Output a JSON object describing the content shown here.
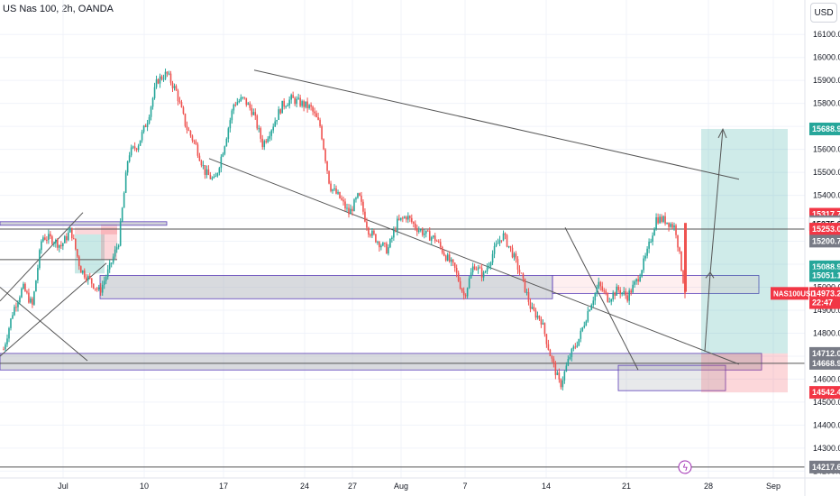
{
  "header": {
    "title": "US Nas 100, 2h, OANDA",
    "currency_button": "USD"
  },
  "colors": {
    "up": "#26a69a",
    "down": "#ef5350",
    "line": "#555555",
    "rect_gray": "#9598a1",
    "rect_fill": "#b2b5be",
    "profit": "#26a69a",
    "loss": "#f23645"
  },
  "icons": {
    "event_marker": "lightning-icon"
  },
  "chart_data": {
    "type": "candlestick",
    "symbol": "US Nas 100",
    "timeframe": "2h",
    "source": "OANDA",
    "x_tick_labels": [
      "Jul",
      "10",
      "17",
      "24",
      "27",
      "Aug",
      "7",
      "14",
      "21",
      "28",
      "Sep"
    ],
    "y_ticks": [
      16100,
      16000,
      15900,
      15800,
      15700,
      15600,
      15500,
      15400,
      15300,
      15200,
      15100,
      15000,
      14900,
      14800,
      14700,
      14600,
      14500,
      14400,
      14300,
      14200
    ],
    "y_tick_labels": [
      "16100.0",
      "16000.0",
      "15900.0",
      "15800.0",
      "15700.0",
      "15600.0",
      "15500.0",
      "15400.0",
      "15300.0",
      "15200.0",
      "15100.0",
      "15000.0",
      "14900.0",
      "14800.0",
      "14700.0",
      "14600.0",
      "14500.0",
      "14400.0",
      "14300.0",
      "14200.0"
    ],
    "ylim": [
      14170,
      16250
    ],
    "price_path": [
      14730,
      14900,
      15000,
      14920,
      15220,
      15210,
      15180,
      15250,
      15080,
      15030,
      14980,
      15080,
      15200,
      15580,
      15620,
      15730,
      15900,
      15930,
      15850,
      15700,
      15620,
      15500,
      15460,
      15620,
      15800,
      15820,
      15760,
      15620,
      15700,
      15790,
      15820,
      15800,
      15780,
      15700,
      15440,
      15390,
      15320,
      15400,
      15250,
      15200,
      15160,
      15280,
      15310,
      15260,
      15230,
      15210,
      15140,
      15080,
      14960,
      15100,
      15050,
      15150,
      15230,
      15150,
      15040,
      14900,
      14860,
      14700,
      14570,
      14700,
      14780,
      14910,
      15010,
      14950,
      14990,
      14960,
      15030,
      15140,
      15300,
      15290,
      15260,
      14980
    ],
    "price_labels": [
      {
        "label": "15688.9",
        "value": 15688.9,
        "kind": "profit"
      },
      {
        "label": "15317.7",
        "value": 15317.7,
        "kind": "loss"
      },
      {
        "label": "15285.3",
        "value": 15285.3,
        "kind": "gray"
      },
      {
        "label": "15275.6",
        "value": 15275.6,
        "kind": "white"
      },
      {
        "label": "15253.0",
        "value": 15253.0,
        "kind": "loss"
      },
      {
        "label": "15200.7",
        "value": 15200.7,
        "kind": "gray"
      },
      {
        "label": "15088.9",
        "value": 15088.9,
        "kind": "profit"
      },
      {
        "label": "15051.1",
        "value": 15051.1,
        "kind": "profit"
      },
      {
        "label": "14973.2",
        "value": 14973.2,
        "kind": "loss"
      },
      {
        "label": "22:47",
        "value": 14933,
        "kind": "loss"
      },
      {
        "label": "14712.0",
        "value": 14712.0,
        "kind": "gray"
      },
      {
        "label": "14668.9",
        "value": 14668.9,
        "kind": "gray"
      },
      {
        "label": "14542.4",
        "value": 14542.4,
        "kind": "loss"
      },
      {
        "label": "14217.6",
        "value": 14217.6,
        "kind": "gray"
      }
    ],
    "symbol_tag": "NAS100USD",
    "long_position": {
      "entry": 14712.0,
      "target": 15688.9,
      "stop": 14542.4
    },
    "horizontal_lines": [
      15253.0,
      14668.9,
      14217.6
    ],
    "zones": [
      15285.3,
      15051.1,
      14712.0
    ],
    "grid": true
  }
}
